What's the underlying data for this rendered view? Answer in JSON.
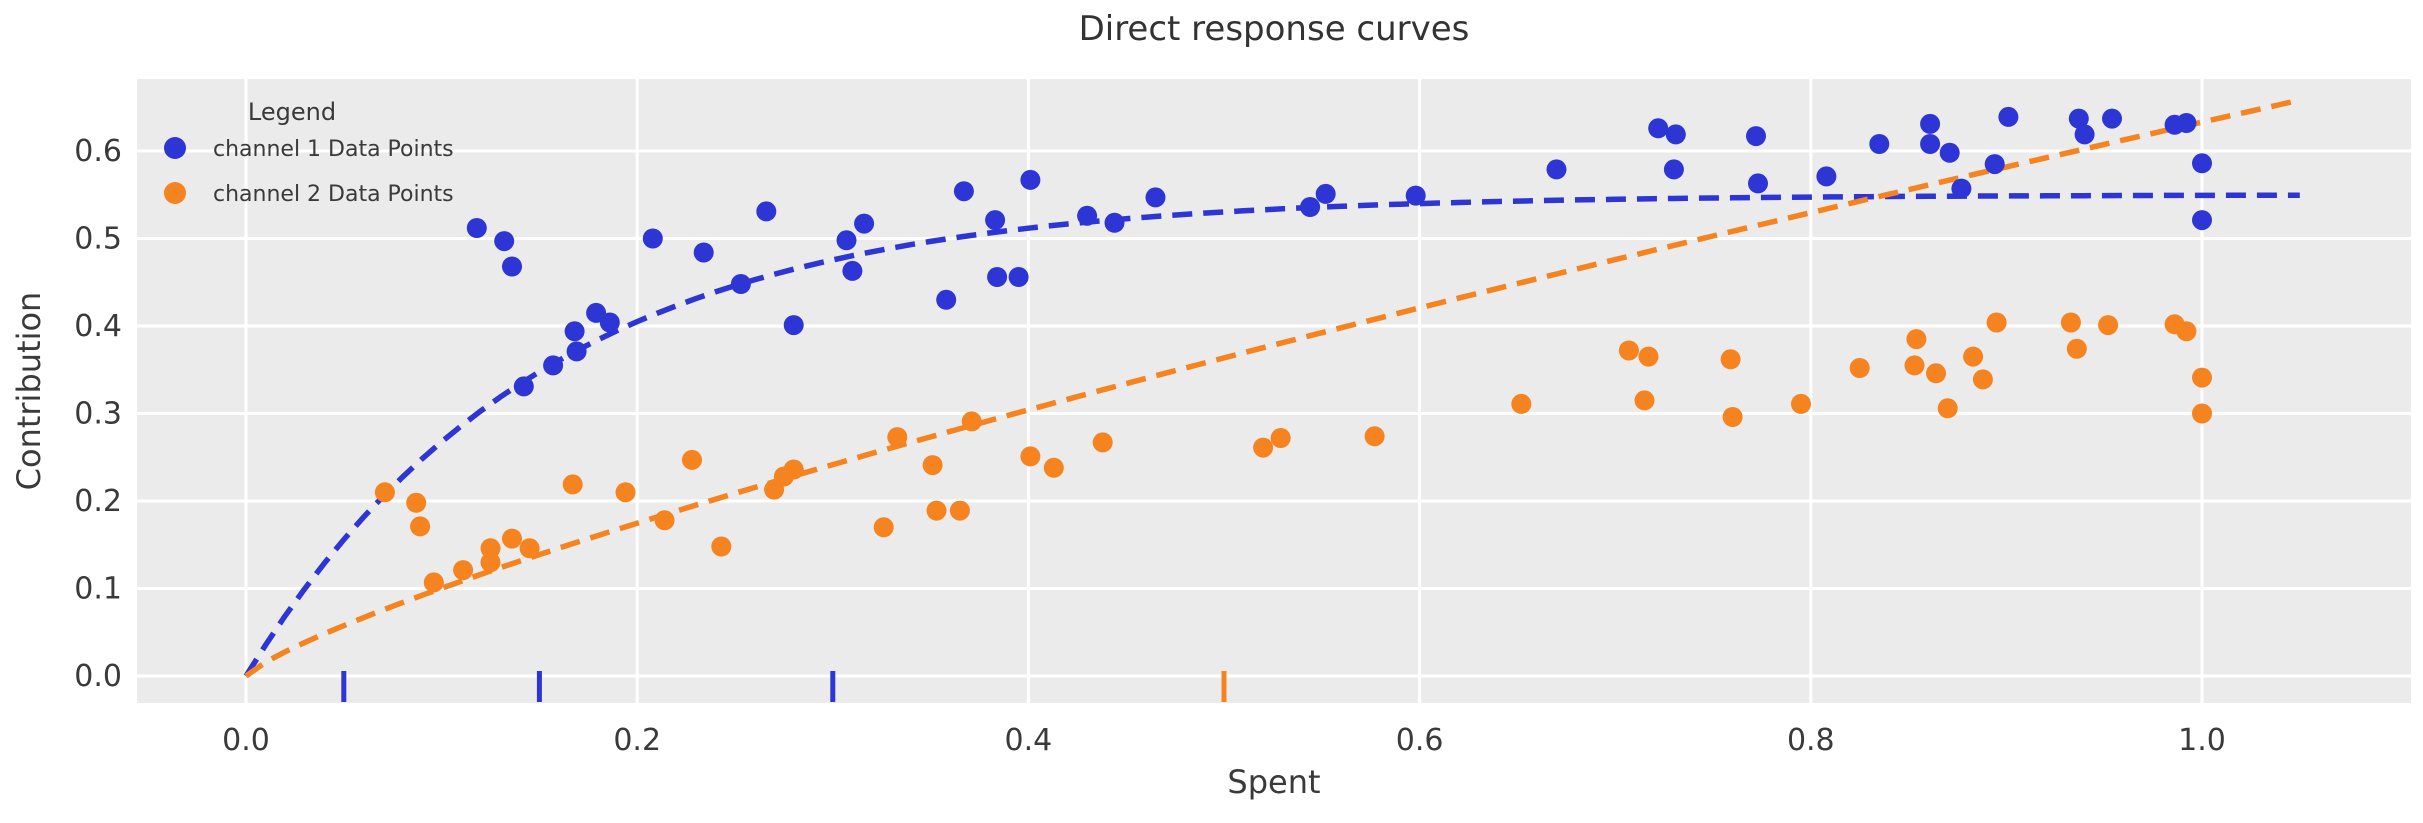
{
  "title": "Direct response curves",
  "axes": {
    "x_label": "Spent",
    "y_label": "Contribution",
    "x_tick_labels": [
      "0.0",
      "0.2",
      "0.4",
      "0.6",
      "0.8",
      "1.0"
    ],
    "x_tick_values": [
      0.0,
      0.2,
      0.4,
      0.6,
      0.8,
      1.0
    ],
    "y_tick_labels": [
      "0.0",
      "0.1",
      "0.2",
      "0.3",
      "0.4",
      "0.5",
      "0.6"
    ],
    "y_tick_values": [
      0.0,
      0.1,
      0.2,
      0.3,
      0.4,
      0.5,
      0.6
    ]
  },
  "legend": {
    "title": "Legend",
    "items": [
      {
        "label": "channel 1 Data Points",
        "color": "#2d35d4"
      },
      {
        "label": "channel 2 Data Points",
        "color": "#f5831f"
      }
    ]
  },
  "colors": {
    "channel1": "#2d35d4",
    "channel2": "#f5831f",
    "panel_background": "#ebebeb",
    "grid": "#ffffff",
    "text": "#3a3a3a"
  },
  "chart_data": {
    "type": "scatter",
    "title": "Direct response curves",
    "xlabel": "Spent",
    "ylabel": "Contribution",
    "xlim": [
      -0.056,
      1.107
    ],
    "ylim": [
      -0.031,
      0.682
    ],
    "grid": true,
    "legend_position": "upper left",
    "series": [
      {
        "name": "channel 1 Data Points",
        "color": "#2d35d4",
        "marker_radius": 10,
        "points": [
          [
            0.118,
            0.512
          ],
          [
            0.132,
            0.497
          ],
          [
            0.136,
            0.468
          ],
          [
            0.142,
            0.331
          ],
          [
            0.157,
            0.355
          ],
          [
            0.169,
            0.371
          ],
          [
            0.168,
            0.394
          ],
          [
            0.179,
            0.415
          ],
          [
            0.186,
            0.404
          ],
          [
            0.208,
            0.5
          ],
          [
            0.234,
            0.484
          ],
          [
            0.253,
            0.448
          ],
          [
            0.266,
            0.531
          ],
          [
            0.28,
            0.401
          ],
          [
            0.307,
            0.498
          ],
          [
            0.31,
            0.463
          ],
          [
            0.316,
            0.517
          ],
          [
            0.358,
            0.43
          ],
          [
            0.367,
            0.554
          ],
          [
            0.383,
            0.521
          ],
          [
            0.384,
            0.456
          ],
          [
            0.395,
            0.456
          ],
          [
            0.401,
            0.567
          ],
          [
            0.43,
            0.526
          ],
          [
            0.444,
            0.518
          ],
          [
            0.465,
            0.547
          ],
          [
            0.544,
            0.536
          ],
          [
            0.552,
            0.551
          ],
          [
            0.598,
            0.549
          ],
          [
            0.67,
            0.579
          ],
          [
            0.722,
            0.626
          ],
          [
            0.73,
            0.579
          ],
          [
            0.731,
            0.619
          ],
          [
            0.772,
            0.617
          ],
          [
            0.773,
            0.563
          ],
          [
            0.808,
            0.571
          ],
          [
            0.835,
            0.608
          ],
          [
            0.861,
            0.631
          ],
          [
            0.861,
            0.608
          ],
          [
            0.871,
            0.598
          ],
          [
            0.877,
            0.557
          ],
          [
            0.894,
            0.585
          ],
          [
            0.901,
            0.639
          ],
          [
            0.937,
            0.637
          ],
          [
            0.94,
            0.619
          ],
          [
            0.954,
            0.637
          ],
          [
            0.986,
            0.63
          ],
          [
            0.992,
            0.632
          ],
          [
            1.0,
            0.586
          ],
          [
            1.0,
            0.521
          ]
        ],
        "curve": {
          "kind": "saturating_exp",
          "formula": "y = 0.55*(1-exp(-x/0.15))",
          "amplitude": 0.55,
          "tau": 0.15,
          "x_range": [
            0,
            1.05
          ],
          "style": "dashed"
        },
        "rug_x": [
          0.05,
          0.15,
          0.3
        ]
      },
      {
        "name": "channel 2 Data Points",
        "color": "#f5831f",
        "marker_radius": 10,
        "points": [
          [
            0.071,
            0.21
          ],
          [
            0.087,
            0.198
          ],
          [
            0.089,
            0.171
          ],
          [
            0.096,
            0.107
          ],
          [
            0.111,
            0.121
          ],
          [
            0.125,
            0.146
          ],
          [
            0.125,
            0.13
          ],
          [
            0.136,
            0.157
          ],
          [
            0.145,
            0.146
          ],
          [
            0.167,
            0.219
          ],
          [
            0.194,
            0.21
          ],
          [
            0.214,
            0.178
          ],
          [
            0.228,
            0.247
          ],
          [
            0.243,
            0.148
          ],
          [
            0.27,
            0.213
          ],
          [
            0.275,
            0.228
          ],
          [
            0.28,
            0.236
          ],
          [
            0.326,
            0.17
          ],
          [
            0.333,
            0.273
          ],
          [
            0.351,
            0.241
          ],
          [
            0.353,
            0.189
          ],
          [
            0.365,
            0.189
          ],
          [
            0.371,
            0.291
          ],
          [
            0.401,
            0.251
          ],
          [
            0.413,
            0.238
          ],
          [
            0.438,
            0.267
          ],
          [
            0.52,
            0.261
          ],
          [
            0.529,
            0.272
          ],
          [
            0.577,
            0.274
          ],
          [
            0.652,
            0.311
          ],
          [
            0.707,
            0.372
          ],
          [
            0.715,
            0.315
          ],
          [
            0.717,
            0.365
          ],
          [
            0.759,
            0.362
          ],
          [
            0.76,
            0.296
          ],
          [
            0.795,
            0.311
          ],
          [
            0.825,
            0.352
          ],
          [
            0.853,
            0.355
          ],
          [
            0.854,
            0.385
          ],
          [
            0.864,
            0.346
          ],
          [
            0.87,
            0.306
          ],
          [
            0.883,
            0.365
          ],
          [
            0.888,
            0.339
          ],
          [
            0.895,
            0.404
          ],
          [
            0.933,
            0.404
          ],
          [
            0.936,
            0.374
          ],
          [
            0.952,
            0.401
          ],
          [
            0.986,
            0.402
          ],
          [
            0.992,
            0.394
          ],
          [
            1.0,
            0.341
          ],
          [
            1.0,
            0.3
          ]
        ],
        "curve": {
          "kind": "power",
          "formula": "y = 0.633*x^0.8",
          "coefficient": 0.633,
          "exponent": 0.8,
          "x_range": [
            0,
            1.05
          ],
          "style": "dashed"
        },
        "rug_x": [
          0.5
        ]
      }
    ]
  }
}
